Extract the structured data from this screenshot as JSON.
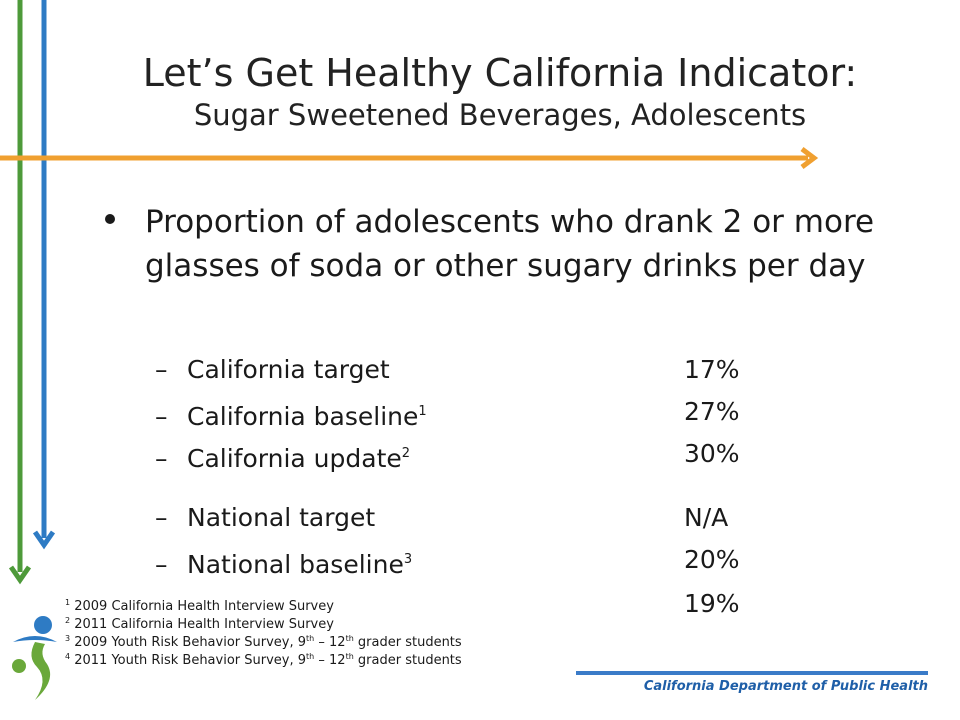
{
  "title": "Let’s Get Healthy California Indicator:",
  "subtitle": "Sugar Sweetened Beverages, Adolescents",
  "bullet": "Proportion of adolescents who drank 2 or more glasses of soda or other sugary drinks per day",
  "items": [
    {
      "dash": "–",
      "label": "California target",
      "sup": "",
      "value": "17%"
    },
    {
      "dash": "–",
      "label": "California baseline",
      "sup": "1",
      "value": "27%"
    },
    {
      "dash": "–",
      "label": "California update",
      "sup": "2",
      "value": "30%"
    },
    {
      "dash": "–",
      "label": "National target",
      "sup": "",
      "value": "N/A"
    },
    {
      "dash": "–",
      "label": "National baseline",
      "sup": "3",
      "value": "20%"
    }
  ],
  "extra_value": "19%",
  "footnotes": [
    {
      "num": "1",
      "pre": "2009 California Health Interview Survey",
      "th1": "",
      "mid": "",
      "th2": "",
      "post": ""
    },
    {
      "num": "2",
      "pre": "2011 California Health Interview Survey",
      "th1": "",
      "mid": "",
      "th2": "",
      "post": ""
    },
    {
      "num": "3",
      "pre": "2009 Youth Risk Behavior Survey, 9",
      "th1": "th",
      "mid": " – 12",
      "th2": "th",
      "post": " grader students"
    },
    {
      "num": "4",
      "pre": "2011 Youth Risk Behavior Survey, 9",
      "th1": "th",
      "mid": " – 12",
      "th2": "th",
      "post": " grader students"
    }
  ],
  "footer": "California Department of Public Health",
  "colors": {
    "green_line": "#4e9a3a",
    "blue_line": "#2e7bc4",
    "orange_line": "#f0a030",
    "footer_blue": "#1f5fa8",
    "logo_green": "#6aa83a",
    "logo_blue": "#2e7bc4"
  },
  "icons": [
    "green-arrow-icon",
    "blue-arrow-icon",
    "orange-arrow-icon",
    "cdph-logo-icon"
  ]
}
